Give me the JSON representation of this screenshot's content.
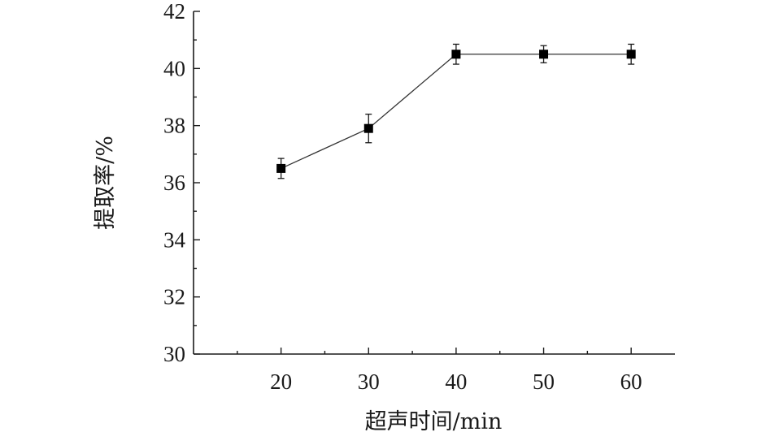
{
  "chart_data": {
    "type": "line",
    "xlabel": "超声时间/min",
    "ylabel": "提取率/%",
    "x": [
      20,
      30,
      40,
      50,
      60
    ],
    "xlim": [
      10,
      65
    ],
    "xticks": [
      20,
      30,
      40,
      50,
      60
    ],
    "ylim": [
      30,
      42
    ],
    "yticks": [
      30,
      32,
      34,
      36,
      38,
      40,
      42
    ],
    "grid": false,
    "legend": "none",
    "marker": "square",
    "line_color": "#333333",
    "marker_color": "#000000",
    "series": [
      {
        "values": [
          36.5,
          37.9,
          40.5,
          40.5,
          40.5
        ],
        "errors": [
          0.35,
          0.5,
          0.35,
          0.3,
          0.35
        ]
      }
    ]
  }
}
